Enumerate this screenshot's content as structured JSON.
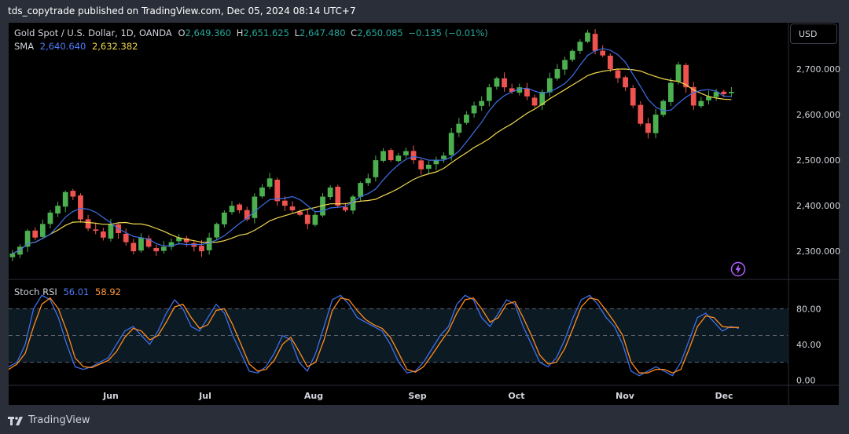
{
  "header": {
    "publisher": "tds_copytrade published on TradingView.com, Dec 05, 2024 08:14 UTC+7"
  },
  "symbol": {
    "title": "Gold Spot / U.S. Dollar, 1D, OANDA",
    "o_label": "O",
    "o": "2,649.360",
    "h_label": "H",
    "h": "2,651.625",
    "l_label": "L",
    "l": "2,647.480",
    "c_label": "C",
    "c": "2,650.085",
    "change": "−0.135 (−0.01%)"
  },
  "sma": {
    "label": "SMA",
    "v1": "2,640.640",
    "v2": "2,632.382"
  },
  "currency_button": "USD",
  "stoch": {
    "label": "Stoch RSI",
    "k": "56.01",
    "d": "58.92"
  },
  "footer": {
    "brand": "TradingView"
  },
  "colors": {
    "up": "#26a69a",
    "down": "#ef5350",
    "up_candle": "#4caf50",
    "sma_fast": "#3d6fe8",
    "sma_slow": "#f2d94e",
    "k_line": "#3d6fe8",
    "d_line": "#ff8c1a"
  },
  "chart_data": [
    {
      "type": "candlestick",
      "y_axis_labels": [
        "2,700.000",
        "2,600.000",
        "2,500.000",
        "2,400.000",
        "2,300.000"
      ],
      "ylim": [
        2240,
        2800
      ],
      "x_axis_labels": [
        "Jun",
        "Jul",
        "Aug",
        "Sep",
        "Oct",
        "Nov",
        "Dec"
      ],
      "close_path": [
        2295,
        2310,
        2345,
        2330,
        2360,
        2385,
        2400,
        2430,
        2420,
        2370,
        2350,
        2345,
        2330,
        2360,
        2340,
        2320,
        2300,
        2330,
        2310,
        2300,
        2310,
        2320,
        2330,
        2320,
        2310,
        2300,
        2330,
        2360,
        2385,
        2400,
        2390,
        2370,
        2420,
        2440,
        2460,
        2410,
        2400,
        2390,
        2380,
        2360,
        2380,
        2420,
        2440,
        2400,
        2390,
        2420,
        2450,
        2460,
        2500,
        2520,
        2500,
        2510,
        2520,
        2500,
        2480,
        2490,
        2500,
        2510,
        2560,
        2580,
        2600,
        2620,
        2630,
        2660,
        2680,
        2660,
        2650,
        2660,
        2640,
        2620,
        2650,
        2680,
        2700,
        2720,
        2740,
        2760,
        2780,
        2740,
        2730,
        2700,
        2680,
        2660,
        2620,
        2580,
        2560,
        2600,
        2630,
        2670,
        2710,
        2660,
        2620,
        2630,
        2640,
        2650,
        2645,
        2650
      ],
      "series": [
        {
          "name": "SMA",
          "value_label": "2,640.640"
        },
        {
          "name": "SMA",
          "value_label": "2,632.382"
        }
      ]
    },
    {
      "type": "line",
      "title": "Stoch RSI",
      "y_axis_labels": [
        "80.00",
        "40.00",
        "0.00"
      ],
      "ylim": [
        -5,
        112
      ],
      "bands": [
        80,
        20
      ],
      "midline": 50,
      "k_path": [
        15,
        20,
        40,
        80,
        95,
        90,
        70,
        40,
        15,
        12,
        15,
        20,
        25,
        40,
        55,
        60,
        50,
        40,
        55,
        75,
        90,
        80,
        60,
        55,
        70,
        85,
        75,
        50,
        30,
        10,
        8,
        15,
        30,
        50,
        45,
        20,
        10,
        30,
        60,
        90,
        95,
        85,
        70,
        65,
        60,
        55,
        40,
        20,
        8,
        10,
        20,
        35,
        50,
        60,
        85,
        95,
        90,
        70,
        60,
        75,
        90,
        85,
        60,
        40,
        20,
        15,
        25,
        45,
        70,
        90,
        95,
        85,
        70,
        60,
        40,
        10,
        5,
        10,
        15,
        10,
        5,
        20,
        45,
        70,
        75,
        65,
        55,
        60,
        58
      ],
      "d_path": [
        12,
        18,
        30,
        60,
        85,
        92,
        80,
        55,
        25,
        15,
        14,
        18,
        22,
        32,
        48,
        58,
        55,
        45,
        50,
        65,
        82,
        85,
        70,
        58,
        62,
        78,
        80,
        62,
        40,
        18,
        10,
        12,
        22,
        40,
        48,
        32,
        15,
        20,
        45,
        78,
        92,
        90,
        78,
        68,
        62,
        58,
        48,
        30,
        12,
        9,
        15,
        28,
        42,
        55,
        75,
        90,
        92,
        80,
        65,
        70,
        85,
        88,
        70,
        50,
        28,
        18,
        20,
        35,
        58,
        82,
        92,
        90,
        78,
        65,
        50,
        20,
        8,
        8,
        12,
        12,
        8,
        12,
        35,
        60,
        72,
        70,
        60,
        59,
        59
      ]
    }
  ]
}
